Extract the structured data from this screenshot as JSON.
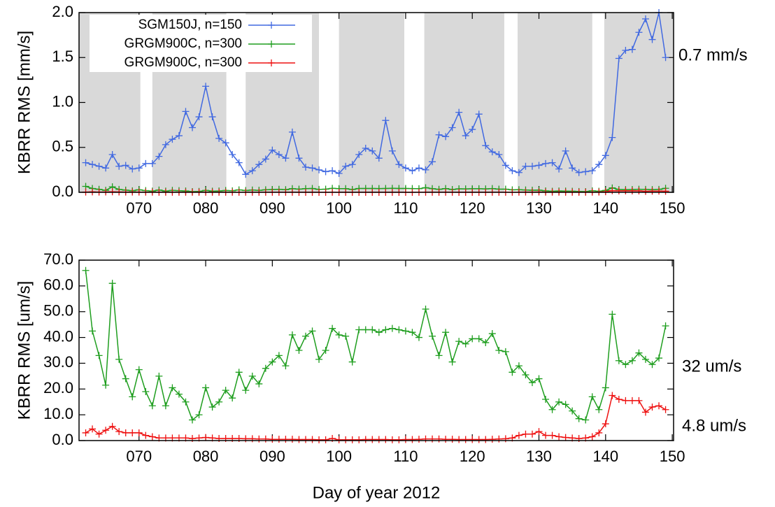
{
  "chart_data": [
    {
      "type": "line",
      "ylabel": "KBRR RMS [mm/s]",
      "x": [
        62,
        63,
        64,
        65,
        66,
        67,
        68,
        69,
        70,
        71,
        72,
        73,
        74,
        75,
        76,
        77,
        78,
        79,
        80,
        81,
        82,
        83,
        84,
        85,
        86,
        87,
        88,
        89,
        90,
        91,
        92,
        93,
        94,
        95,
        96,
        97,
        98,
        99,
        100,
        101,
        102,
        103,
        104,
        105,
        106,
        107,
        108,
        109,
        110,
        111,
        112,
        113,
        114,
        115,
        116,
        117,
        118,
        119,
        120,
        121,
        122,
        123,
        124,
        125,
        126,
        127,
        128,
        129,
        130,
        131,
        132,
        133,
        134,
        135,
        136,
        137,
        138,
        139,
        140,
        141,
        142,
        143,
        144,
        145,
        146,
        147,
        148,
        149
      ],
      "xlim": [
        61,
        150.2
      ],
      "xticks": [
        {
          "value": 70,
          "label": "070"
        },
        {
          "value": 80,
          "label": "080"
        },
        {
          "value": 90,
          "label": "090"
        },
        100,
        110,
        120,
        130,
        140,
        150
      ],
      "ylim": [
        0,
        2
      ],
      "yticks": [
        {
          "value": 0,
          "label": "0.0"
        },
        {
          "value": 0.5,
          "label": "0.5"
        },
        {
          "value": 1,
          "label": "1.0"
        },
        {
          "value": 1.5,
          "label": "1.5"
        },
        {
          "value": 2,
          "label": "2.0"
        }
      ],
      "shaded_ranges": [
        [
          60.5,
          70.2
        ],
        [
          72,
          83.1
        ],
        [
          86,
          97
        ],
        [
          100,
          109.8
        ],
        [
          112.8,
          124.8
        ],
        [
          126.8,
          138
        ],
        [
          139.8,
          150.5
        ]
      ],
      "shade_color": "#d9d9d9",
      "legend": true,
      "series": [
        {
          "name": "SGM150J, n=150",
          "color": "#4169e1",
          "values": [
            0.33,
            0.31,
            0.29,
            0.27,
            0.42,
            0.29,
            0.3,
            0.26,
            0.27,
            0.32,
            0.32,
            0.4,
            0.53,
            0.59,
            0.63,
            0.9,
            0.72,
            0.84,
            1.18,
            0.84,
            0.6,
            0.55,
            0.42,
            0.33,
            0.2,
            0.24,
            0.31,
            0.37,
            0.47,
            0.42,
            0.38,
            0.67,
            0.38,
            0.28,
            0.27,
            0.25,
            0.23,
            0.24,
            0.21,
            0.29,
            0.31,
            0.42,
            0.49,
            0.46,
            0.38,
            0.8,
            0.46,
            0.31,
            0.27,
            0.24,
            0.27,
            0.25,
            0.34,
            0.64,
            0.62,
            0.72,
            0.89,
            0.63,
            0.7,
            0.87,
            0.52,
            0.45,
            0.42,
            0.3,
            0.24,
            0.22,
            0.29,
            0.29,
            0.3,
            0.32,
            0.33,
            0.26,
            0.46,
            0.27,
            0.22,
            0.23,
            0.24,
            0.31,
            0.41,
            0.61,
            1.49,
            1.58,
            1.59,
            1.78,
            1.93,
            1.7,
            2.0,
            1.5
          ]
        },
        {
          "name": "GRGM900C, n=300",
          "color": "#1f9e1f",
          "values": [
            0.066,
            0.043,
            0.033,
            0.022,
            0.061,
            0.032,
            0.024,
            0.017,
            0.028,
            0.019,
            0.014,
            0.025,
            0.014,
            0.021,
            0.018,
            0.015,
            0.008,
            0.01,
            0.021,
            0.013,
            0.015,
            0.02,
            0.017,
            0.027,
            0.02,
            0.025,
            0.022,
            0.028,
            0.031,
            0.033,
            0.029,
            0.041,
            0.035,
            0.041,
            0.043,
            0.032,
            0.035,
            0.044,
            0.041,
            0.041,
            0.031,
            0.043,
            0.043,
            0.043,
            0.042,
            0.043,
            0.044,
            0.043,
            0.043,
            0.042,
            0.04,
            0.051,
            0.041,
            0.033,
            0.042,
            0.031,
            0.039,
            0.038,
            0.04,
            0.04,
            0.038,
            0.042,
            0.035,
            0.035,
            0.027,
            0.029,
            0.026,
            0.023,
            0.024,
            0.016,
            0.012,
            0.015,
            0.014,
            0.012,
            0.009,
            0.008,
            0.017,
            0.012,
            0.021,
            0.049,
            0.031,
            0.03,
            0.031,
            0.034,
            0.032,
            0.03,
            0.032,
            0.045
          ]
        },
        {
          "name": "GRGM900C, n=300",
          "color": "#ee1111",
          "values": [
            0.003,
            0.005,
            0.003,
            0.004,
            0.006,
            0.004,
            0.003,
            0.003,
            0.003,
            0.002,
            0.002,
            0.001,
            0.001,
            0.001,
            0.001,
            0.001,
            0.001,
            0.001,
            0.001,
            0.001,
            0.001,
            0.001,
            0.001,
            0.001,
            0.001,
            0.001,
            0.001,
            0.001,
            0.001,
            0.001,
            0.001,
            0.001,
            0,
            0,
            0,
            0,
            0,
            0.001,
            0,
            0,
            0,
            0,
            0,
            0,
            0,
            0,
            0,
            0,
            0,
            0,
            0.001,
            0.001,
            0.001,
            0.001,
            0.001,
            0.001,
            0,
            0,
            0,
            0,
            0,
            0.001,
            0.001,
            0.001,
            0.001,
            0.002,
            0.003,
            0.003,
            0.004,
            0.002,
            0.002,
            0.002,
            0.001,
            0.001,
            0.001,
            0.001,
            0.002,
            0.003,
            0.007,
            0.018,
            0.016,
            0.016,
            0.016,
            0.016,
            0.011,
            0.013,
            0.014,
            0.012
          ]
        }
      ],
      "annotations": [
        {
          "text": "0.7 mm/s",
          "color": "#4169e1"
        }
      ]
    },
    {
      "type": "line",
      "ylabel": "KBRR RMS [um/s]",
      "xlabel": "Day of year 2012",
      "x": [
        62,
        63,
        64,
        65,
        66,
        67,
        68,
        69,
        70,
        71,
        72,
        73,
        74,
        75,
        76,
        77,
        78,
        79,
        80,
        81,
        82,
        83,
        84,
        85,
        86,
        87,
        88,
        89,
        90,
        91,
        92,
        93,
        94,
        95,
        96,
        97,
        98,
        99,
        100,
        101,
        102,
        103,
        104,
        105,
        106,
        107,
        108,
        109,
        110,
        111,
        112,
        113,
        114,
        115,
        116,
        117,
        118,
        119,
        120,
        121,
        122,
        123,
        124,
        125,
        126,
        127,
        128,
        129,
        130,
        131,
        132,
        133,
        134,
        135,
        136,
        137,
        138,
        139,
        140,
        141,
        142,
        143,
        144,
        145,
        146,
        147,
        148,
        149
      ],
      "xlim": [
        61,
        150.2
      ],
      "xticks": [
        {
          "value": 70,
          "label": "070"
        },
        {
          "value": 80,
          "label": "080"
        },
        {
          "value": 90,
          "label": "090"
        },
        100,
        110,
        120,
        130,
        140,
        150
      ],
      "ylim": [
        0,
        70
      ],
      "yticks": [
        {
          "value": 0,
          "label": "0.0"
        },
        {
          "value": 10,
          "label": "10.0"
        },
        {
          "value": 20,
          "label": "20.0"
        },
        {
          "value": 30,
          "label": "30.0"
        },
        {
          "value": 40,
          "label": "40.0"
        },
        {
          "value": 50,
          "label": "50.0"
        },
        {
          "value": 60,
          "label": "60.0"
        },
        {
          "value": 70,
          "label": "70.0"
        }
      ],
      "series": [
        {
          "color": "#1f9e1f",
          "values": [
            66,
            42.5,
            33,
            21.5,
            61,
            31.5,
            24,
            17,
            27.5,
            19,
            13.5,
            25,
            13.5,
            20.5,
            18,
            15,
            8,
            10,
            20.5,
            13,
            15,
            19.5,
            16.5,
            26.5,
            19.5,
            25,
            22,
            28,
            30.5,
            33,
            29,
            41,
            35,
            40.5,
            42.5,
            31.5,
            35,
            43.5,
            41,
            40.5,
            30.5,
            43,
            43,
            43,
            42,
            43,
            43.5,
            43,
            42.5,
            42,
            40,
            51,
            40.5,
            33,
            42,
            30.5,
            38.5,
            37.5,
            39.5,
            39.5,
            38,
            41.5,
            35,
            34.5,
            26.5,
            29,
            25.5,
            22.5,
            24,
            16,
            12,
            15,
            14,
            11.5,
            8.5,
            8,
            17,
            12,
            20.5,
            49,
            31,
            29.5,
            31,
            34,
            31.5,
            29.5,
            32,
            44.5
          ]
        },
        {
          "color": "#ee1111",
          "values": [
            3,
            4.5,
            2.5,
            4,
            5.5,
            3.5,
            3,
            3,
            3,
            2,
            1.5,
            1,
            1,
            1,
            1,
            1,
            0.8,
            1,
            1.2,
            1,
            0.8,
            0.8,
            0.8,
            0.8,
            0.7,
            0.7,
            0.6,
            0.6,
            0.5,
            0.5,
            0.5,
            0.5,
            0.4,
            0.4,
            0.4,
            0.3,
            0.3,
            0.8,
            0.3,
            0.3,
            0.3,
            0.3,
            0.4,
            0.4,
            0.4,
            0.4,
            0.3,
            0.3,
            0.4,
            0.4,
            0.5,
            0.6,
            0.6,
            0.6,
            0.5,
            0.5,
            0.4,
            0.4,
            0.4,
            0.4,
            0.4,
            0.5,
            0.6,
            0.7,
            1,
            2,
            2.5,
            2.5,
            3.5,
            2,
            2,
            1.5,
            1.2,
            1,
            0.8,
            1,
            1.5,
            3,
            6.5,
            17.5,
            16,
            15.5,
            15.5,
            15.5,
            11,
            13,
            13.5,
            12
          ]
        }
      ],
      "annotations": [
        {
          "text": "32 um/s",
          "color": "#1f9e1f"
        },
        {
          "text": "4.8 um/s",
          "color": "#ee1111"
        }
      ]
    }
  ]
}
